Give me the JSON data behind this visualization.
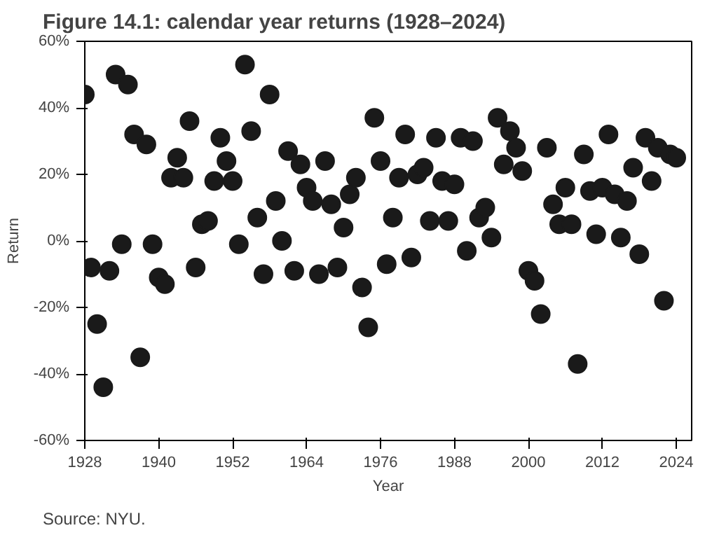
{
  "chart_data": {
    "type": "scatter",
    "title": "Figure 14.1: calendar year returns (1928–2024)",
    "xlabel": "Year",
    "ylabel": "Return",
    "annotations": [
      "Source: NYU."
    ],
    "x": [
      1928,
      1929,
      1930,
      1931,
      1932,
      1933,
      1934,
      1935,
      1936,
      1937,
      1938,
      1939,
      1940,
      1941,
      1942,
      1943,
      1944,
      1945,
      1946,
      1947,
      1948,
      1949,
      1950,
      1951,
      1952,
      1953,
      1954,
      1955,
      1956,
      1957,
      1958,
      1959,
      1960,
      1961,
      1962,
      1963,
      1964,
      1965,
      1966,
      1967,
      1968,
      1969,
      1970,
      1971,
      1972,
      1973,
      1974,
      1975,
      1976,
      1977,
      1978,
      1979,
      1980,
      1981,
      1982,
      1983,
      1984,
      1985,
      1986,
      1987,
      1988,
      1989,
      1990,
      1991,
      1992,
      1993,
      1994,
      1995,
      1996,
      1997,
      1998,
      1999,
      2000,
      2001,
      2002,
      2003,
      2004,
      2005,
      2006,
      2007,
      2008,
      2009,
      2010,
      2011,
      2012,
      2013,
      2014,
      2015,
      2016,
      2017,
      2018,
      2019,
      2020,
      2021,
      2022,
      2023,
      2024
    ],
    "series": [
      {
        "color": "#1a1a1a",
        "values": [
          44,
          -8,
          -25,
          -44,
          -9,
          50,
          -1,
          47,
          32,
          -35,
          29,
          -1,
          -11,
          -13,
          19,
          25,
          19,
          36,
          -8,
          5,
          6,
          18,
          31,
          24,
          18,
          -1,
          53,
          33,
          7,
          -10,
          44,
          12,
          0,
          27,
          -9,
          23,
          16,
          12,
          -10,
          24,
          11,
          -8,
          4,
          14,
          19,
          -14,
          -26,
          37,
          24,
          -7,
          7,
          19,
          32,
          -5,
          20,
          22,
          6,
          31,
          18,
          6,
          17,
          31,
          -3,
          30,
          7,
          10,
          1,
          37,
          23,
          33,
          28,
          21,
          -9,
          -12,
          -22,
          28,
          11,
          5,
          16,
          5,
          -37,
          26,
          15,
          2,
          16,
          32,
          14,
          1,
          12,
          22,
          -4,
          31,
          18,
          28,
          -18,
          26,
          25
        ]
      }
    ],
    "xlim": [
      1928,
      2026.5
    ],
    "ylim": [
      -60,
      60
    ],
    "xticks": [
      1928,
      1940,
      1952,
      1964,
      1976,
      1988,
      2000,
      2012,
      2024
    ],
    "yticks": [
      {
        "value": -60,
        "label": "-60%"
      },
      {
        "value": -40,
        "label": "-40%"
      },
      {
        "value": -20,
        "label": "-20%"
      },
      {
        "value": 0,
        "label": "0%"
      },
      {
        "value": 20,
        "label": "20%"
      },
      {
        "value": 40,
        "label": "40%"
      },
      {
        "value": 60,
        "label": "60%"
      }
    ],
    "marker": "circle",
    "grid": false
  }
}
